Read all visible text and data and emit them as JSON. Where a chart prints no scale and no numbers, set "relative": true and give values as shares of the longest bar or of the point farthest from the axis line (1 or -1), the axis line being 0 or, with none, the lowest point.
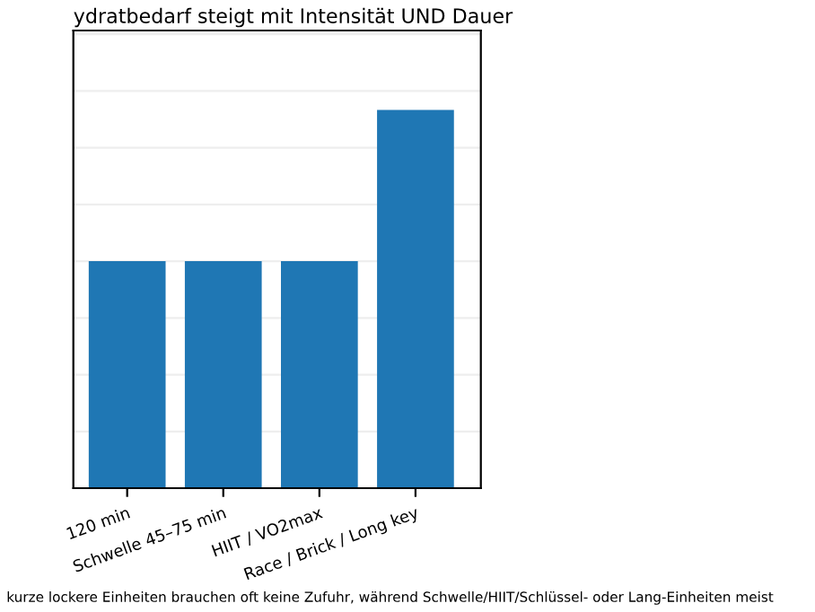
{
  "chart_data": {
    "type": "bar",
    "title": "ydratbedarf steigt mit Intensität UND Dauer",
    "categories": [
      "120 min",
      "Schwelle 45–75 min",
      "HIIT / VO2max",
      "Race / Brick / Long key"
    ],
    "values": [
      0.6,
      0.6,
      0.6,
      1
    ],
    "color": "#1f77b4",
    "relative": true,
    "grid": "y",
    "annotations": [
      "kurze lockere Einheiten brauchen oft keine Zufuhr, während Schwelle/HIIT/Schlüssel- oder Lang-Einheiten meist"
    ]
  }
}
